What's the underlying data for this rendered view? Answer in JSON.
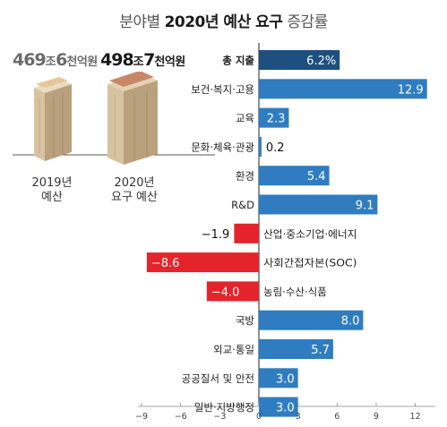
{
  "title": {
    "prefix": "분야별 ",
    "bold": "2020년 예산 요구",
    "suffix": " 증감률"
  },
  "left_panel": {
    "y2019": {
      "num1": "469",
      "unit1": "조",
      "num2": "6",
      "unit2": "천억원",
      "caption_line1": "2019년",
      "caption_line2": "예산"
    },
    "y2020": {
      "num1": "498",
      "unit1": "조",
      "num2": "7",
      "unit2": "천억원",
      "caption_line1": "2020년",
      "caption_line2": "요구 예산"
    }
  },
  "colors": {
    "total": "#1d4f80",
    "positive": "#2f7dc0",
    "negative": "#e5232b",
    "illus_stack": "#c9b69a",
    "illus_wrap_2019": "#e3c89a",
    "illus_wrap_2020": "#c9876a"
  },
  "chart_data": {
    "type": "bar",
    "orientation": "horizontal",
    "categories": [
      "총 지출",
      "보건·복지·고용",
      "교육",
      "문화·체육·관광",
      "환경",
      "R&D",
      "산업·중소기업·에너지",
      "사회간접자본(SOC)",
      "농림·수산·식품",
      "국방",
      "외교·통일",
      "공공질서 및 안전",
      "일반·지방행정"
    ],
    "values": [
      6.2,
      12.9,
      2.3,
      0.2,
      5.4,
      9.1,
      -1.9,
      -8.6,
      -4.0,
      8.0,
      5.7,
      3.0,
      3.0
    ],
    "value_labels": [
      "6.2%",
      "12.9",
      "2.3",
      "0.2",
      "5.4",
      "9.1",
      "−1.9",
      "−8.6",
      "−4.0",
      "8.0",
      "5.7",
      "3.0",
      "3.0"
    ],
    "highlight_index": 0,
    "xlim": [
      -9,
      13
    ],
    "xticks": [
      "−9",
      "−6",
      "−3",
      "0",
      "3",
      "6",
      "9",
      "12"
    ],
    "grid": false,
    "title": "분야별 2020년 예산 요구 증감률"
  }
}
